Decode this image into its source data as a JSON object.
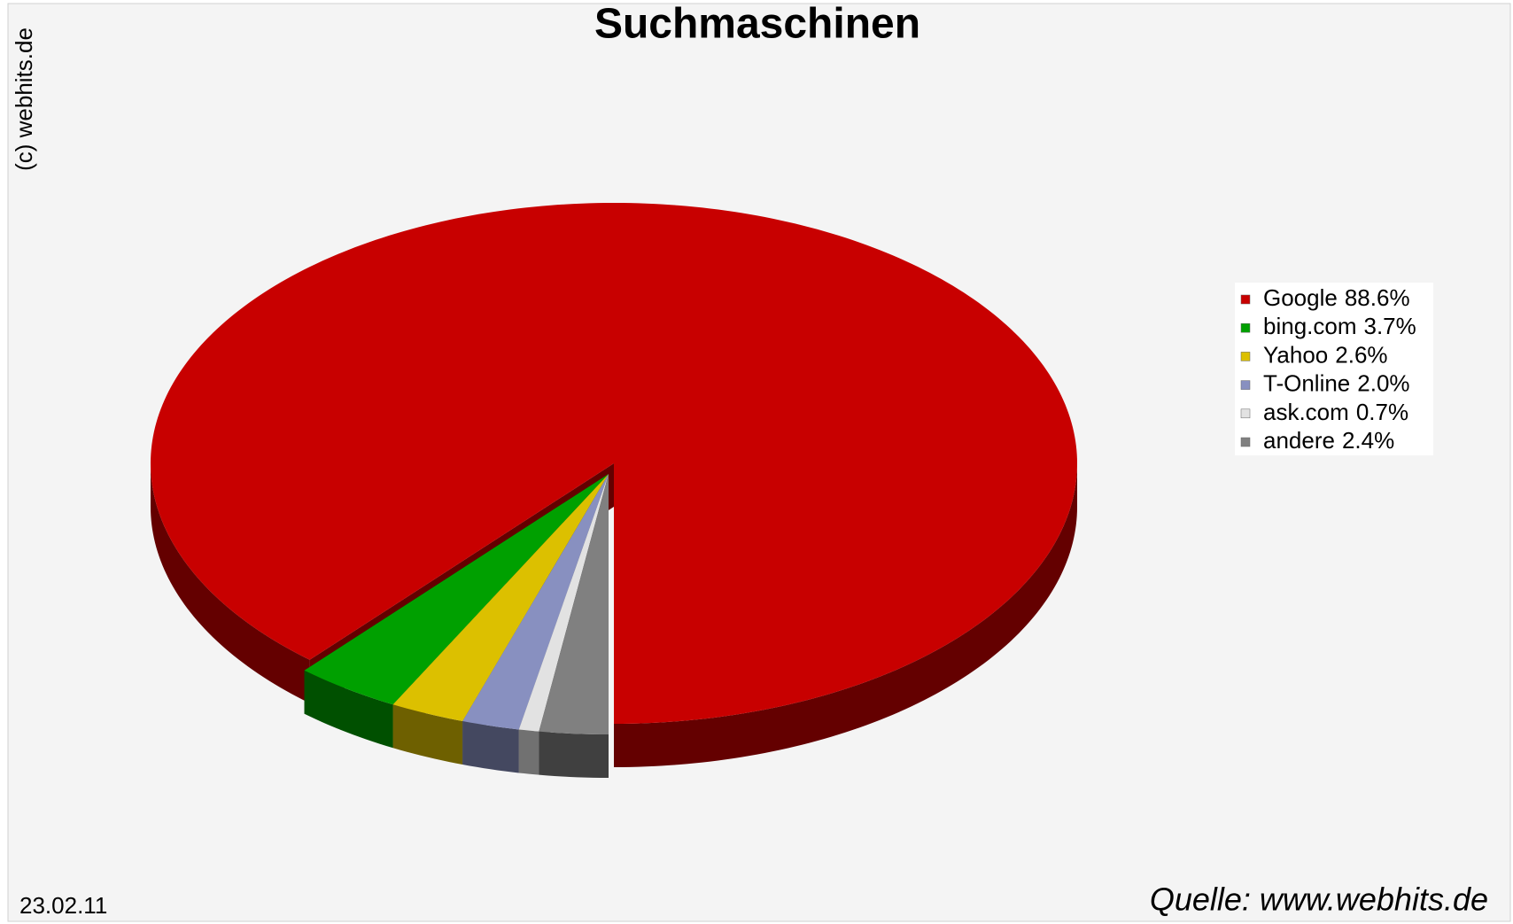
{
  "chart_data": {
    "type": "pie",
    "title": "Suchmaschinen",
    "categories": [
      "Google",
      "bing.com",
      "Yahoo",
      "T-Online",
      "ask.com",
      "andere"
    ],
    "values": [
      88.6,
      3.7,
      2.6,
      2.0,
      0.7,
      2.4
    ],
    "value_labels": [
      "88.6%",
      "3.7%",
      "2.6%",
      "2.0%",
      "0.7%",
      "2.4%"
    ],
    "colors": [
      "#c80000",
      "#00a000",
      "#dcc000",
      "#8890c0",
      "#e2e2e2",
      "#808080"
    ],
    "legend": "right",
    "copyright": "(c) webhits.de",
    "date": "23.02.11",
    "source": "Quelle: www.webhits.de"
  }
}
